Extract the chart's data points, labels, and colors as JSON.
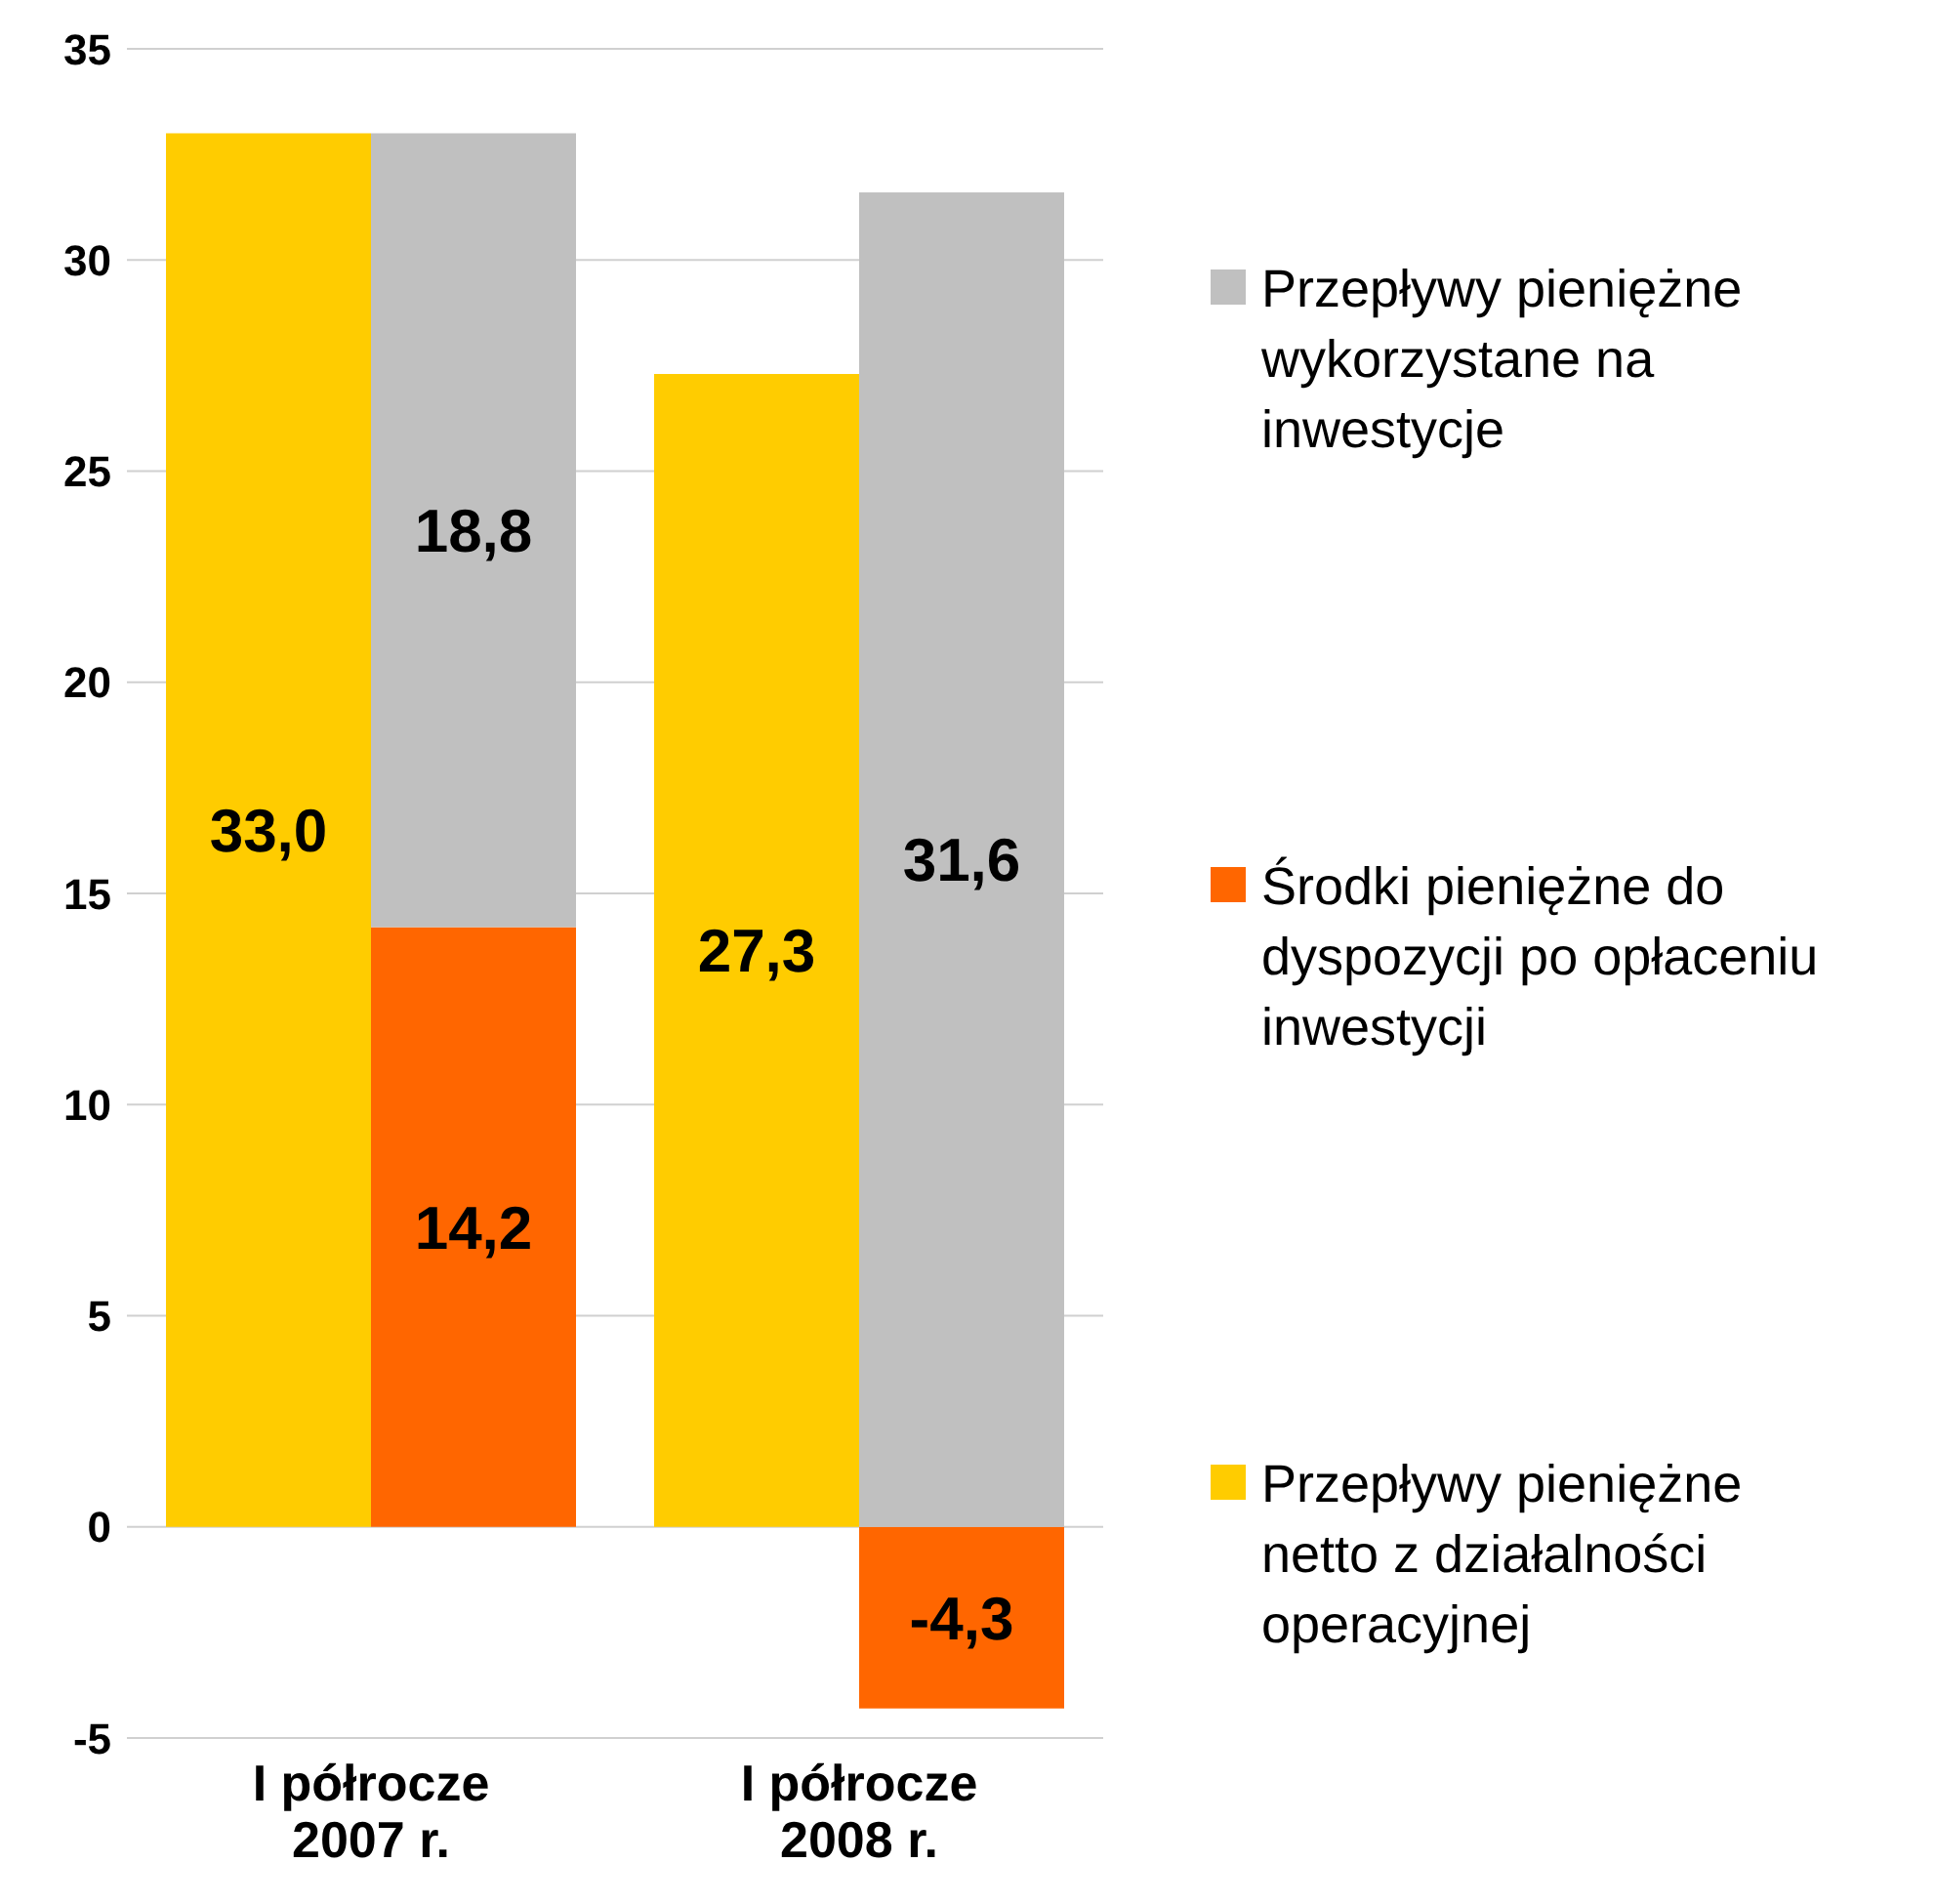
{
  "chart_data": {
    "type": "bar",
    "categories": [
      "I półrocze 2007 r.",
      "I półrocze 2008 r."
    ],
    "series": [
      {
        "name": "Przepływy pieniężne netto z działalności operacyjnej",
        "color": "#ffcc00",
        "values": [
          33.0,
          27.3
        ],
        "value_labels": [
          "33,0",
          "27,3"
        ]
      },
      {
        "name": "Środki pieniężne do dyspozycji po opłaceniu inwestycji",
        "color": "#ff6600",
        "values": [
          14.2,
          -4.3
        ],
        "base": [
          0,
          0
        ],
        "value_labels": [
          "14,2",
          "-4,3"
        ]
      },
      {
        "name": "Przepływy pieniężne wykorzystane na inwestycje",
        "color": "#c0c0c0",
        "values": [
          18.8,
          31.6
        ],
        "base": [
          14.2,
          0
        ],
        "value_labels": [
          "18,8",
          "31,6"
        ]
      }
    ],
    "ylim": [
      -5,
      35
    ],
    "yticks": [
      -5,
      0,
      5,
      10,
      15,
      20,
      25,
      30,
      35
    ],
    "grid": "y",
    "legend": "right"
  }
}
